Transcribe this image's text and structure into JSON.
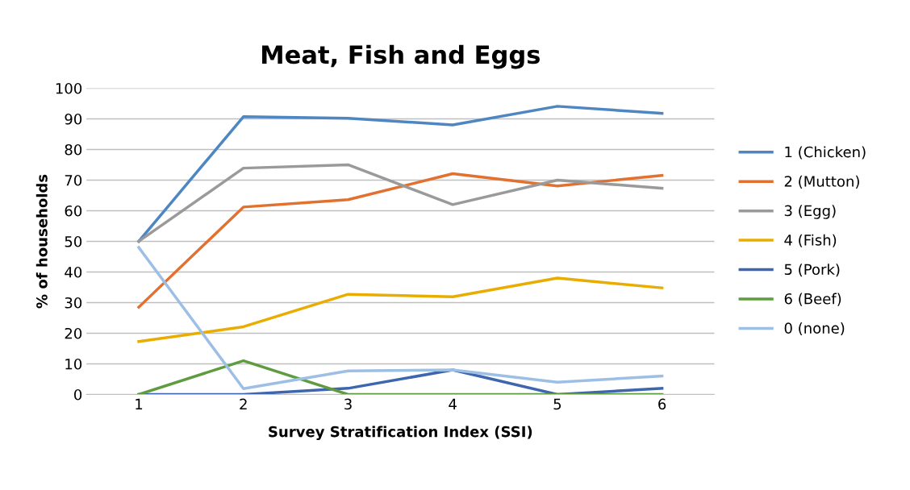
{
  "chart_data": {
    "type": "line",
    "title": "Meat, Fish and Eggs",
    "xlabel": "Survey Stratification Index (SSI)",
    "ylabel": "% of households",
    "categories": [
      "1",
      "2",
      "3",
      "4",
      "5",
      "6"
    ],
    "series": [
      {
        "name": "1 (Chicken)",
        "color": "#4e86c2",
        "values": [
          50,
          90.7,
          90.2,
          88,
          94.1,
          91.8
        ]
      },
      {
        "name": "2 (Mutton)",
        "color": "#e2702f",
        "values": [
          28.5,
          61.2,
          63.6,
          72.1,
          68.1,
          71.5
        ]
      },
      {
        "name": "3 (Egg)",
        "color": "#9a9a9a",
        "values": [
          50,
          73.9,
          75,
          62,
          70,
          67.3
        ]
      },
      {
        "name": "4 (Fish)",
        "color": "#e8ad00",
        "values": [
          17.3,
          22.1,
          32.7,
          31.9,
          38,
          34.8
        ]
      },
      {
        "name": "5 (Pork)",
        "color": "#3d66af",
        "values": [
          0,
          0,
          2,
          8,
          0,
          2
        ]
      },
      {
        "name": "6 (Beef)",
        "color": "#5e9c3f",
        "values": [
          0,
          11,
          0,
          0,
          0,
          0
        ]
      },
      {
        "name": "0 (none)",
        "color": "#9dbfe6",
        "values": [
          48,
          1.9,
          7.7,
          8,
          4,
          6
        ]
      }
    ],
    "ylim": [
      0,
      100
    ],
    "yticks": [
      0,
      10,
      20,
      30,
      40,
      50,
      60,
      70,
      80,
      90,
      100
    ],
    "grid": "y",
    "legend": "right",
    "marker": "none",
    "line_style": "solid"
  }
}
